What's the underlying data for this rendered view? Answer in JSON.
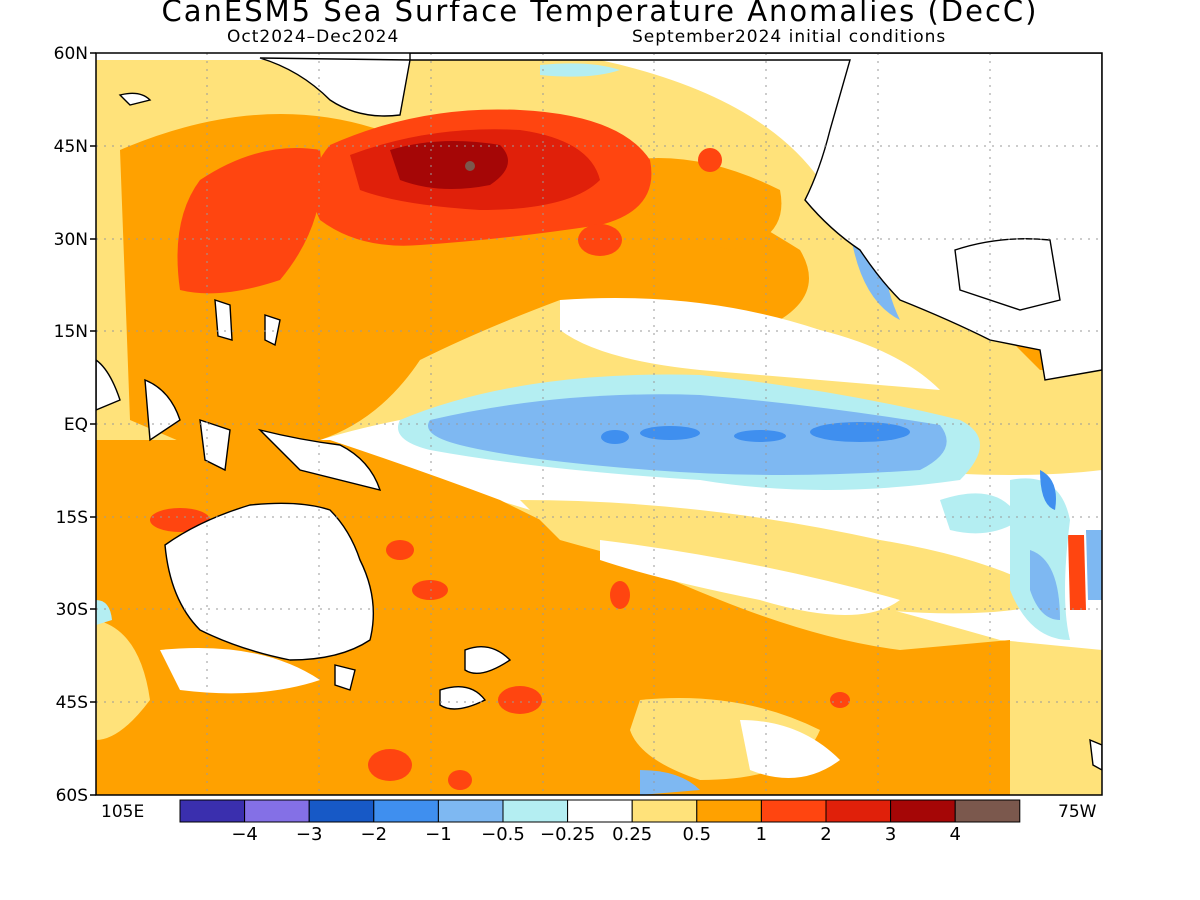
{
  "title": "CanESM5 Sea Surface Temperature Anomalies (DecC)",
  "subtitle_left": "Oct2024–Dec2024",
  "subtitle_right": "September2024 initial conditions",
  "lat_labels": [
    "60N",
    "45N",
    "30N",
    "15N",
    "EQ",
    "15S",
    "30S",
    "45S",
    "60S"
  ],
  "lon_labels": {
    "left": "105E",
    "right": "75W"
  },
  "colorbar": {
    "colors": [
      "#3a2fae",
      "#8470e6",
      "#1759c6",
      "#3f8fef",
      "#7eb8f2",
      "#b4eef2",
      "#ffffff",
      "#ffe27a",
      "#ffa100",
      "#ff4510",
      "#e0200a",
      "#a50606",
      "#7b584d"
    ],
    "labels": [
      "−4",
      "−3",
      "−2",
      "−1",
      "−0.5",
      "−0.25",
      "0.25",
      "0.5",
      "1",
      "2",
      "3",
      "4"
    ]
  },
  "map_style": {
    "ocean_color": "#ffffff",
    "land_color": "#ffffff",
    "coast_color": "#000000",
    "grid": "dotted"
  },
  "regions": {
    "west_pacific_warm_pool": "warm anomaly 0.5 to 1",
    "kuroshio_extension": "strong warm anomaly 2 to 4",
    "equatorial_cold_tongue": "cold anomaly -0.5 to -1",
    "southwest_pacific": "warm anomaly 0.5 to 1"
  }
}
